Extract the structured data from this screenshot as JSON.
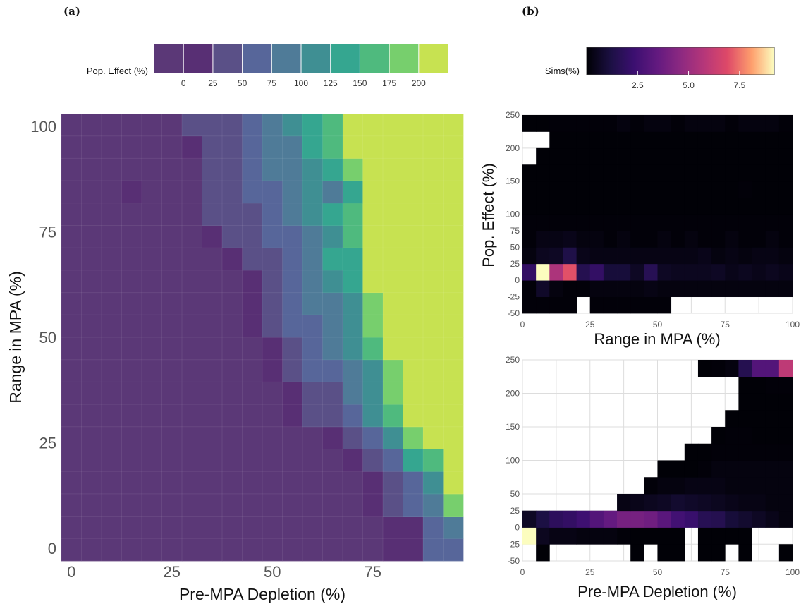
{
  "panel_a": {
    "label": "(a)",
    "legend": {
      "title": "Pop. Effect (%)",
      "ticks": [
        "0",
        "25",
        "50",
        "75",
        "100",
        "125",
        "150",
        "175",
        "200"
      ],
      "bin_colors": [
        "#5b3877",
        "#582f74",
        "#5a5087",
        "#57669a",
        "#4f7b98",
        "#3f8f93",
        "#35a690",
        "#4fba7e",
        "#77cf6d",
        "#c7e251"
      ]
    }
  },
  "panel_b": {
    "label": "(b)",
    "legend": {
      "title": "Sims(%)",
      "ticks": [
        "2.5",
        "5.0",
        "7.5"
      ],
      "range": [
        0,
        9.2
      ]
    }
  },
  "chart_data": [
    {
      "type": "heatmap",
      "panel": "(a)",
      "xlabel": "Pre-MPA Depletion (%)",
      "ylabel": "Range in MPA (%)",
      "x_ticks": [
        "0",
        "25",
        "50",
        "75"
      ],
      "y_ticks": [
        "0",
        "25",
        "50",
        "75",
        "100"
      ],
      "xlim": [
        -2.5,
        97.5
      ],
      "ylim": [
        -3,
        103
      ],
      "x_bins": 20,
      "y_bins": 20,
      "cells_note": "z = Pop. Effect (%) class index per cell (0..9), rows from Range 0 (bottom) to 100 (top), columns Pre-MPA Depletion 0 to 95",
      "z": [
        [
          0,
          0,
          0,
          0,
          0,
          0,
          0,
          0,
          0,
          0,
          0,
          0,
          0,
          0,
          0,
          0,
          1,
          1,
          3,
          3
        ],
        [
          0,
          0,
          0,
          0,
          0,
          0,
          0,
          0,
          0,
          0,
          0,
          0,
          0,
          0,
          0,
          0,
          1,
          1,
          3,
          4
        ],
        [
          0,
          0,
          0,
          0,
          0,
          0,
          0,
          0,
          0,
          0,
          0,
          0,
          0,
          0,
          0,
          1,
          2,
          3,
          4,
          8
        ],
        [
          0,
          0,
          0,
          0,
          0,
          0,
          0,
          0,
          0,
          0,
          0,
          0,
          0,
          0,
          0,
          1,
          2,
          3,
          5,
          9
        ],
        [
          0,
          0,
          0,
          0,
          0,
          0,
          0,
          0,
          0,
          0,
          0,
          0,
          0,
          0,
          1,
          2,
          3,
          6,
          7,
          9
        ],
        [
          0,
          0,
          0,
          0,
          0,
          0,
          0,
          0,
          0,
          0,
          0,
          0,
          0,
          1,
          2,
          3,
          5,
          8,
          9,
          9
        ],
        [
          0,
          0,
          0,
          0,
          0,
          0,
          0,
          0,
          0,
          0,
          0,
          1,
          2,
          2,
          3,
          5,
          7,
          9,
          9,
          9
        ],
        [
          0,
          0,
          0,
          0,
          0,
          0,
          0,
          0,
          0,
          0,
          0,
          1,
          2,
          2,
          4,
          5,
          8,
          9,
          9,
          9
        ],
        [
          0,
          0,
          0,
          0,
          0,
          0,
          0,
          0,
          0,
          0,
          1,
          2,
          3,
          3,
          4,
          5,
          8,
          9,
          9,
          9
        ],
        [
          0,
          0,
          0,
          0,
          0,
          0,
          0,
          0,
          0,
          0,
          1,
          2,
          3,
          4,
          5,
          7,
          9,
          9,
          9,
          9
        ],
        [
          0,
          0,
          0,
          0,
          0,
          0,
          0,
          0,
          0,
          1,
          2,
          3,
          3,
          4,
          5,
          8,
          9,
          9,
          9,
          9
        ],
        [
          0,
          0,
          0,
          0,
          0,
          0,
          0,
          0,
          0,
          1,
          2,
          3,
          4,
          4,
          5,
          8,
          9,
          9,
          9,
          9
        ],
        [
          0,
          0,
          0,
          0,
          0,
          0,
          0,
          0,
          0,
          1,
          2,
          3,
          4,
          5,
          6,
          9,
          9,
          9,
          9,
          9
        ],
        [
          0,
          0,
          0,
          0,
          0,
          0,
          0,
          0,
          1,
          2,
          2,
          3,
          4,
          6,
          6,
          9,
          9,
          9,
          9,
          9
        ],
        [
          0,
          0,
          0,
          0,
          0,
          0,
          0,
          1,
          2,
          2,
          3,
          3,
          4,
          5,
          7,
          9,
          9,
          9,
          9,
          9
        ],
        [
          0,
          0,
          0,
          0,
          0,
          0,
          0,
          2,
          2,
          2,
          3,
          4,
          5,
          6,
          7,
          9,
          9,
          9,
          9,
          9
        ],
        [
          0,
          0,
          0,
          1,
          0,
          0,
          0,
          2,
          2,
          3,
          3,
          4,
          5,
          4,
          6,
          9,
          9,
          9,
          9,
          9
        ],
        [
          0,
          0,
          0,
          0,
          0,
          0,
          0,
          2,
          2,
          3,
          4,
          4,
          5,
          6,
          8,
          9,
          9,
          9,
          9,
          9
        ],
        [
          0,
          0,
          0,
          0,
          0,
          0,
          1,
          2,
          2,
          3,
          4,
          4,
          6,
          7,
          9,
          9,
          9,
          9,
          9,
          9
        ],
        [
          0,
          0,
          0,
          0,
          0,
          0,
          2,
          2,
          2,
          3,
          4,
          5,
          6,
          7,
          9,
          9,
          9,
          9,
          9,
          9
        ]
      ]
    },
    {
      "type": "heatmap",
      "panel": "(b) top",
      "xlabel": "Range in MPA (%)",
      "ylabel": "Pop. Effect (%)",
      "x_ticks": [
        "0",
        "25",
        "50",
        "75",
        "100"
      ],
      "y_ticks": [
        "-50",
        "-25",
        "0",
        "25",
        "50",
        "75",
        "100",
        "150",
        "200",
        "250"
      ],
      "xlim": [
        0,
        100
      ],
      "ylim": [
        -50,
        250
      ],
      "x_bins": 20,
      "y_bins": 12,
      "cells_note": "z = Sims(%) per cell; null = no simulations; rows from Pop. Effect -50 (bottom) to 250 (top)",
      "z": [
        [
          0.1,
          0.1,
          0.1,
          0.1,
          null,
          0.1,
          0.1,
          0.1,
          0.1,
          0.1,
          0.1,
          null,
          null,
          null,
          null,
          null,
          null,
          null,
          null,
          null
        ],
        [
          0.1,
          0.7,
          0.2,
          0.1,
          0.1,
          0.2,
          0.2,
          0.2,
          0.2,
          0.3,
          0.2,
          0.2,
          0.2,
          0.2,
          0.2,
          0.2,
          0.2,
          0.2,
          0.2,
          0.2
        ],
        [
          2.0,
          9.2,
          5.5,
          7.0,
          1.5,
          2.0,
          1.0,
          1.0,
          0.6,
          1.6,
          0.6,
          0.5,
          0.5,
          0.5,
          0.6,
          0.4,
          0.5,
          0.4,
          0.5,
          0.4
        ],
        [
          0.2,
          0.5,
          0.6,
          1.3,
          0.4,
          0.3,
          0.3,
          0.3,
          0.3,
          0.3,
          0.3,
          0.3,
          0.3,
          0.4,
          0.2,
          0.3,
          0.2,
          0.3,
          0.3,
          0.2
        ],
        [
          0.1,
          0.3,
          0.3,
          0.4,
          0.2,
          0.2,
          0.1,
          0.2,
          0.1,
          0.1,
          0.2,
          0.1,
          0.2,
          0.1,
          0.1,
          0.2,
          0.1,
          0.1,
          0.2,
          0.1
        ],
        [
          0.1,
          0.1,
          0.1,
          0.1,
          0.1,
          0.1,
          0.1,
          0.1,
          0.1,
          0.1,
          0.1,
          0.1,
          0.1,
          0.1,
          0.1,
          0.1,
          0.1,
          0.1,
          0.1,
          0.1
        ],
        [
          0.05,
          0.05,
          0.05,
          0.05,
          0.05,
          0.05,
          0.05,
          0.05,
          0.05,
          0.05,
          0.05,
          0.05,
          0.05,
          0.05,
          0.05,
          0.05,
          0.05,
          0.05,
          0.05,
          0.05
        ],
        [
          0.05,
          0.05,
          0.05,
          0.05,
          0.05,
          0.05,
          0.05,
          0.05,
          0.05,
          0.05,
          0.05,
          0.05,
          0.05,
          0.05,
          0.05,
          0.05,
          0.1,
          0.05,
          0.05,
          0.05
        ],
        [
          0.05,
          0.05,
          0.05,
          0.05,
          0.05,
          0.05,
          0.05,
          0.05,
          0.05,
          0.05,
          0.05,
          0.05,
          0.05,
          0.05,
          0.05,
          0.05,
          0.05,
          0.05,
          0.05,
          0.05
        ],
        [
          null,
          0.05,
          0.05,
          0.05,
          0.05,
          0.05,
          0.05,
          0.05,
          0.05,
          0.05,
          0.05,
          0.05,
          0.05,
          0.05,
          0.05,
          0.05,
          0.05,
          0.05,
          0.05,
          0.05
        ],
        [
          null,
          null,
          0.05,
          0.05,
          0.05,
          0.05,
          0.05,
          0.05,
          0.05,
          0.05,
          0.05,
          0.05,
          0.05,
          0.05,
          0.05,
          0.05,
          0.05,
          0.05,
          0.05,
          0.05
        ],
        [
          0.05,
          0.05,
          0.1,
          0.1,
          0.1,
          0.1,
          0.1,
          0.2,
          0.1,
          0.2,
          0.2,
          0.1,
          0.2,
          0.2,
          0.2,
          0.1,
          0.2,
          0.2,
          0.2,
          0.1
        ]
      ]
    },
    {
      "type": "heatmap",
      "panel": "(b) bottom",
      "xlabel": "Pre-MPA Depletion (%)",
      "ylabel": "Pop. Effect (%)",
      "x_ticks": [
        "0",
        "25",
        "50",
        "75",
        "100"
      ],
      "y_ticks": [
        "-50",
        "-25",
        "0",
        "25",
        "50",
        "100",
        "150",
        "200",
        "250"
      ],
      "xlim": [
        0,
        100
      ],
      "ylim": [
        -50,
        250
      ],
      "x_bins": 20,
      "y_bins": 12,
      "cells_note": "z = Sims(%) per cell; null = no simulations; rows from Pop. Effect -50 (bottom) to 250 (top)",
      "z": [
        [
          null,
          0.05,
          null,
          null,
          null,
          null,
          null,
          null,
          0.05,
          null,
          0.05,
          0.05,
          null,
          0.05,
          0.05,
          null,
          0.05,
          null,
          null,
          0.05
        ],
        [
          9.2,
          0.5,
          0.3,
          0.3,
          0.2,
          0.2,
          0.2,
          0.1,
          0.05,
          0.05,
          0.05,
          0.05,
          null,
          0.05,
          0.05,
          0.05,
          0.05,
          null,
          null,
          null
        ],
        [
          0.6,
          1.2,
          1.8,
          2.0,
          2.4,
          3.0,
          3.5,
          4.0,
          4.0,
          3.8,
          3.2,
          2.5,
          2.2,
          1.6,
          1.5,
          1.0,
          0.8,
          0.6,
          0.4,
          0.2
        ],
        [
          null,
          null,
          null,
          null,
          null,
          null,
          null,
          0.3,
          0.4,
          0.5,
          0.6,
          0.8,
          0.7,
          0.6,
          0.5,
          0.4,
          0.3,
          0.3,
          0.2,
          0.2
        ],
        [
          null,
          null,
          null,
          null,
          null,
          null,
          null,
          null,
          null,
          0.1,
          0.2,
          0.2,
          0.3,
          0.3,
          0.3,
          0.2,
          0.2,
          0.2,
          0.2,
          0.2
        ],
        [
          null,
          null,
          null,
          null,
          null,
          null,
          null,
          null,
          null,
          null,
          0.05,
          0.05,
          0.05,
          0.1,
          0.2,
          0.2,
          0.2,
          0.2,
          0.2,
          0.2
        ],
        [
          null,
          null,
          null,
          null,
          null,
          null,
          null,
          null,
          null,
          null,
          null,
          null,
          0.05,
          0.05,
          0.1,
          0.1,
          0.1,
          0.1,
          0.1,
          0.1
        ],
        [
          null,
          null,
          null,
          null,
          null,
          null,
          null,
          null,
          null,
          null,
          null,
          null,
          null,
          null,
          0.05,
          0.1,
          0.1,
          0.05,
          0.05,
          0.05
        ],
        [
          null,
          null,
          null,
          null,
          null,
          null,
          null,
          null,
          null,
          null,
          null,
          null,
          null,
          null,
          null,
          0.05,
          0.05,
          0.05,
          0.05,
          0.05
        ],
        [
          null,
          null,
          null,
          null,
          null,
          null,
          null,
          null,
          null,
          null,
          null,
          null,
          null,
          null,
          null,
          null,
          0.05,
          0.05,
          0.05,
          0.05
        ],
        [
          null,
          null,
          null,
          null,
          null,
          null,
          null,
          null,
          null,
          null,
          null,
          null,
          null,
          null,
          null,
          null,
          0.05,
          0.05,
          0.1,
          0.1
        ],
        [
          null,
          null,
          null,
          null,
          null,
          null,
          null,
          null,
          null,
          null,
          null,
          null,
          null,
          0.05,
          0.1,
          0.2,
          1.5,
          3.0,
          3.0,
          6.0
        ]
      ]
    }
  ]
}
